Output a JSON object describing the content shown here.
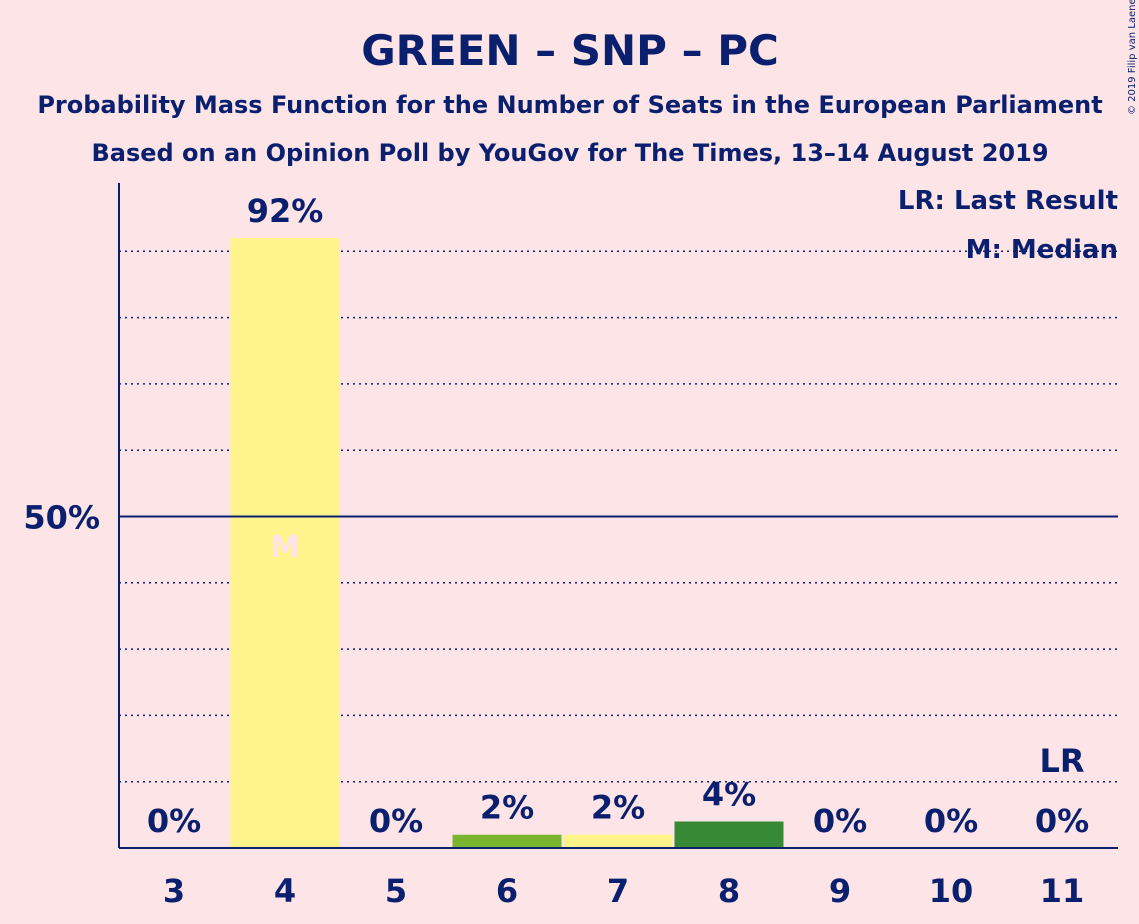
{
  "chart_data": {
    "type": "bar",
    "title": "GREEN – SNP – PC",
    "subtitle1": "Probability Mass Function for the Number of Seats in the European Parliament",
    "subtitle2": "Based on an Opinion Poll by YouGov for The Times, 13–14 August 2019",
    "copyright": "© 2019 Filip van Laenen",
    "categories": [
      "3",
      "4",
      "5",
      "6",
      "7",
      "8",
      "9",
      "10",
      "11"
    ],
    "values": [
      0,
      92,
      0,
      2,
      2,
      4,
      0,
      0,
      0
    ],
    "data_labels": [
      "0%",
      "92%",
      "0%",
      "2%",
      "2%",
      "4%",
      "0%",
      "0%",
      "0%"
    ],
    "bar_colors": [
      "#fff48c",
      "#fff48c",
      "#fff48c",
      "#79b52e",
      "#fff48c",
      "#368a35",
      "#fff48c",
      "#fff48c",
      "#fff48c"
    ],
    "ylim": [
      0,
      100
    ],
    "y_tick_label": "50%",
    "y_tick_value": 50,
    "gridlines": [
      10,
      20,
      30,
      40,
      60,
      70,
      80,
      90
    ],
    "median_category": "4",
    "median_marker": "M",
    "last_result_category": "11",
    "last_result_marker": "LR",
    "legend": [
      "LR: Last Result",
      "M: Median"
    ],
    "colors": {
      "background": "#fde4e7",
      "text": "#0a1f6e"
    }
  }
}
